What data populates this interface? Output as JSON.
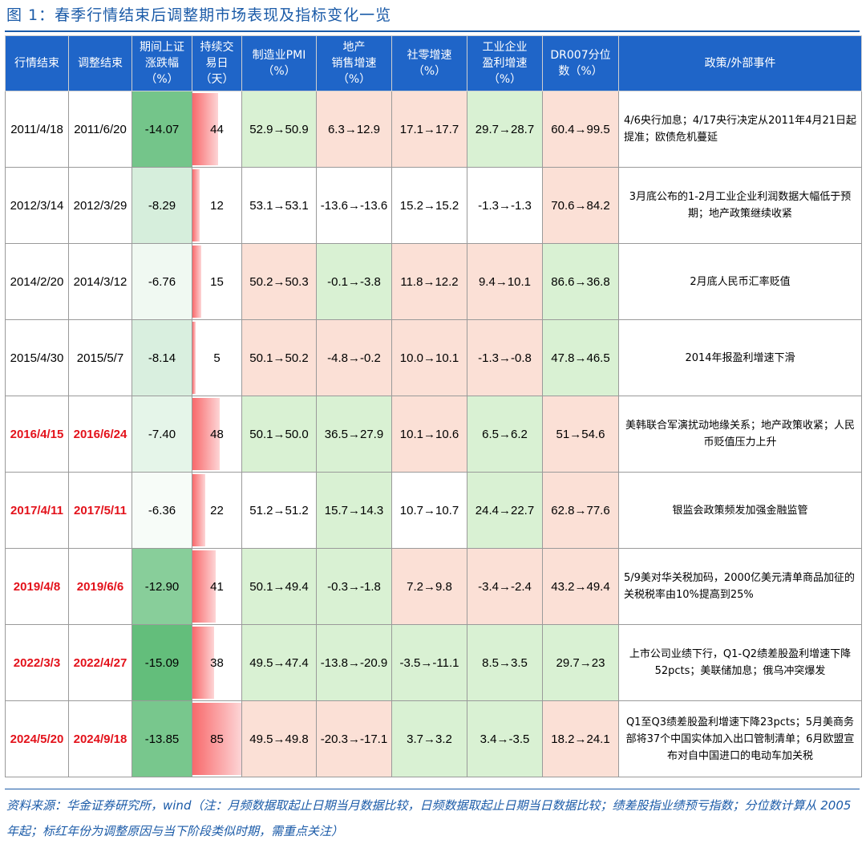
{
  "title": "图 1：春季行情结束后调整期市场表现及指标变化一览",
  "headers": [
    "行情结束",
    "调整结束",
    "期间上证\n涨跌幅\n（%）",
    "持续交\n易日\n（天）",
    "制造业PMI\n（%）",
    "地产\n销售增速\n（%）",
    "社零增速\n（%）",
    "工业企业\n盈利增速\n（%）",
    "DR007分位\n数（%）",
    "政策/外部事件"
  ],
  "colors": {
    "header_bg": "#1f65c8",
    "green_cell": "#d9f1d3",
    "red_cell": "#fbe0d6",
    "highlight_date": "#e3121b",
    "title_blue": "#1b5ba8"
  },
  "rows": [
    {
      "start": "2011/4/18",
      "end": "2011/6/20",
      "highlight": false,
      "change": "-14.07",
      "days": "44",
      "pmi": "52.9→50.9",
      "pmi_c": "g",
      "estate": "6.3→12.9",
      "estate_c": "r",
      "retail": "17.1→17.7",
      "retail_c": "r",
      "profit": "29.7→28.7",
      "profit_c": "g",
      "dr007": "60.4→99.5",
      "dr007_c": "r",
      "event": "4/6央行加息；4/17央行决定从2011年4月21日起提准；欧债危机蔓延",
      "event_align": "left"
    },
    {
      "start": "2012/3/14",
      "end": "2012/3/29",
      "highlight": false,
      "change": "-8.29",
      "days": "12",
      "pmi": "53.1→53.1",
      "pmi_c": "w",
      "estate": "-13.6→-13.6",
      "estate_c": "w",
      "retail": "15.2→15.2",
      "retail_c": "w",
      "profit": "-1.3→-1.3",
      "profit_c": "w",
      "dr007": "70.6→84.2",
      "dr007_c": "r",
      "event": "3月底公布的1-2月工业企业利润数据大幅低于预期；地产政策继续收紧",
      "event_align": "center"
    },
    {
      "start": "2014/2/20",
      "end": "2014/3/12",
      "highlight": false,
      "change": "-6.76",
      "days": "15",
      "pmi": "50.2→50.3",
      "pmi_c": "r",
      "estate": "-0.1→-3.8",
      "estate_c": "g",
      "retail": "11.8→12.2",
      "retail_c": "r",
      "profit": "9.4→10.1",
      "profit_c": "r",
      "dr007": "86.6→36.8",
      "dr007_c": "g",
      "event": "2月底人民币汇率贬值",
      "event_align": "center"
    },
    {
      "start": "2015/4/30",
      "end": "2015/5/7",
      "highlight": false,
      "change": "-8.14",
      "days": "5",
      "pmi": "50.1→50.2",
      "pmi_c": "r",
      "estate": "-4.8→-0.2",
      "estate_c": "r",
      "retail": "10.0→10.1",
      "retail_c": "r",
      "profit": "-1.3→-0.8",
      "profit_c": "r",
      "dr007": "47.8→46.5",
      "dr007_c": "g",
      "event": "2014年报盈利增速下滑",
      "event_align": "center"
    },
    {
      "start": "2016/4/15",
      "end": "2016/6/24",
      "highlight": true,
      "change": "-7.40",
      "days": "48",
      "pmi": "50.1→50.0",
      "pmi_c": "g",
      "estate": "36.5→27.9",
      "estate_c": "g",
      "retail": "10.1→10.6",
      "retail_c": "r",
      "profit": "6.5→6.2",
      "profit_c": "g",
      "dr007": "51→54.6",
      "dr007_c": "r",
      "event": "美韩联合军演扰动地缘关系；地产政策收紧；人民币贬值压力上升",
      "event_align": "center"
    },
    {
      "start": "2017/4/11",
      "end": "2017/5/11",
      "highlight": true,
      "change": "-6.36",
      "days": "22",
      "pmi": "51.2→51.2",
      "pmi_c": "w",
      "estate": "15.7→14.3",
      "estate_c": "g",
      "retail": "10.7→10.7",
      "retail_c": "w",
      "profit": "24.4→22.7",
      "profit_c": "g",
      "dr007": "62.8→77.6",
      "dr007_c": "r",
      "event": "银监会政策频发加强金融监管",
      "event_align": "center"
    },
    {
      "start": "2019/4/8",
      "end": "2019/6/6",
      "highlight": true,
      "change": "-12.90",
      "days": "41",
      "pmi": "50.1→49.4",
      "pmi_c": "g",
      "estate": "-0.3→-1.8",
      "estate_c": "g",
      "retail": "7.2→9.8",
      "retail_c": "r",
      "profit": "-3.4→-2.4",
      "profit_c": "r",
      "dr007": "43.2→49.4",
      "dr007_c": "r",
      "event": "5/9美对华关税加码，2000亿美元清单商品加征的关税税率由10%提高到25%",
      "event_align": "left"
    },
    {
      "start": "2022/3/3",
      "end": "2022/4/27",
      "highlight": true,
      "change": "-15.09",
      "days": "38",
      "pmi": "49.5→47.4",
      "pmi_c": "g",
      "estate": "-13.8→-20.9",
      "estate_c": "g",
      "retail": "-3.5→-11.1",
      "retail_c": "g",
      "profit": "8.5→3.5",
      "profit_c": "g",
      "dr007": "29.7→23",
      "dr007_c": "g",
      "event": "上市公司业绩下行，Q1-Q2绩差股盈利增速下降52pcts；美联储加息；俄乌冲突爆发",
      "event_align": "center"
    },
    {
      "start": "2024/5/20",
      "end": "2024/9/18",
      "highlight": true,
      "change": "-13.85",
      "days": "85",
      "pmi": "49.5→49.8",
      "pmi_c": "r",
      "estate": "-20.3→-17.1",
      "estate_c": "r",
      "retail": "3.7→3.2",
      "retail_c": "g",
      "profit": "3.4→-3.5",
      "profit_c": "g",
      "dr007": "18.2→24.1",
      "dr007_c": "r",
      "event": "Q1至Q3绩差股盈利增速下降23pcts；5月美商务部将37个中国实体加入出口管制清单；6月欧盟宣布对自中国进口的电动车加关税",
      "event_align": "center"
    }
  ],
  "footer": "资料来源：华金证券研究所，wind（注：月频数据取起止日期当月数据比较，日频数据取起止日期当日数据比较；绩差股指业绩预亏指数；分位数计算从 2005 年起；标红年份为调整原因与当下阶段类似时期，需重点关注）"
}
